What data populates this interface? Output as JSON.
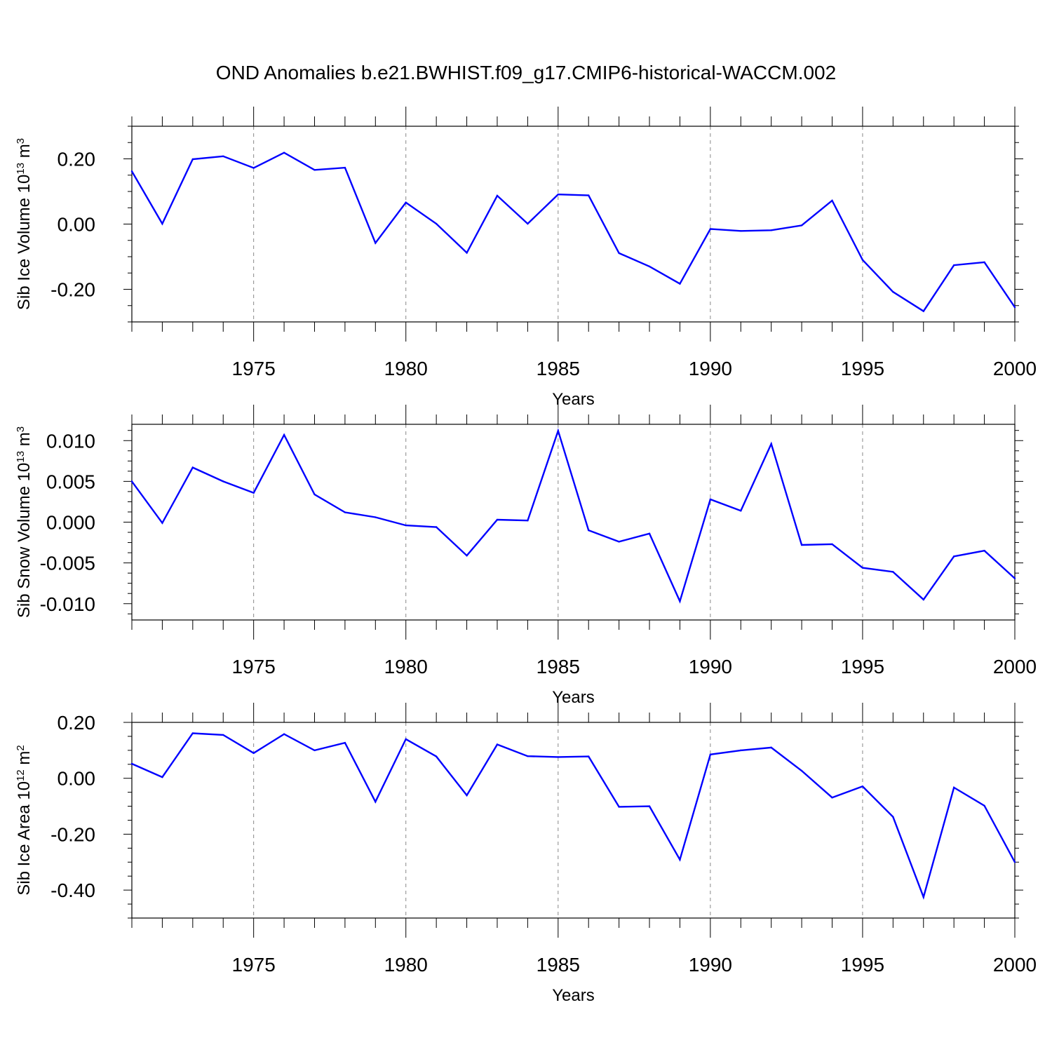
{
  "title": "OND Anomalies b.e21.BWHIST.f09_g17.CMIP6-historical-WACCM.002",
  "line_color": "#0000ff",
  "chart_data": [
    {
      "type": "line",
      "ylabel_main": "Sib Ice Volume 10",
      "ylabel_exp": "13",
      "ylabel_unit": " m",
      "ylabel_unit_exp": "3",
      "xlabel": "Years",
      "xlim": [
        1971,
        2000
      ],
      "ylim": [
        -0.3,
        0.3
      ],
      "yticks": [
        0.2,
        0.0,
        -0.2
      ],
      "ytick_labels": [
        "0.20",
        "0.00",
        "-0.20"
      ],
      "xticks": [
        1975,
        1980,
        1985,
        1990,
        1995,
        2000
      ],
      "xtick_labels": [
        "1975",
        "1980",
        "1985",
        "1990",
        "1995",
        "2000"
      ],
      "x": [
        1971,
        1972,
        1973,
        1974,
        1975,
        1976,
        1977,
        1978,
        1979,
        1980,
        1981,
        1982,
        1983,
        1984,
        1985,
        1986,
        1987,
        1988,
        1989,
        1990,
        1991,
        1992,
        1993,
        1994,
        1995,
        1996,
        1997,
        1998,
        1999,
        2000
      ],
      "y": [
        0.162,
        0.001,
        0.199,
        0.208,
        0.172,
        0.219,
        0.166,
        0.173,
        -0.058,
        0.066,
        0.001,
        -0.088,
        0.087,
        0.001,
        0.091,
        0.088,
        -0.089,
        -0.13,
        -0.183,
        -0.015,
        -0.021,
        -0.019,
        -0.004,
        0.072,
        -0.11,
        -0.208,
        -0.267,
        -0.126,
        -0.117,
        -0.255
      ]
    },
    {
      "type": "line",
      "ylabel_main": "Sib Snow Volume 10",
      "ylabel_exp": "13",
      "ylabel_unit": " m",
      "ylabel_unit_exp": "3",
      "xlabel": "Years",
      "xlim": [
        1971,
        2000
      ],
      "ylim": [
        -0.012,
        0.012
      ],
      "yticks": [
        0.01,
        0.005,
        0.0,
        -0.005,
        -0.01
      ],
      "ytick_labels": [
        "0.010",
        "0.005",
        "0.000",
        "-0.005",
        "-0.010"
      ],
      "xticks": [
        1975,
        1980,
        1985,
        1990,
        1995,
        2000
      ],
      "xtick_labels": [
        "1975",
        "1980",
        "1985",
        "1990",
        "1995",
        "2000"
      ],
      "x": [
        1971,
        1972,
        1973,
        1974,
        1975,
        1976,
        1977,
        1978,
        1979,
        1980,
        1981,
        1982,
        1983,
        1984,
        1985,
        1986,
        1987,
        1988,
        1989,
        1990,
        1991,
        1992,
        1993,
        1994,
        1995,
        1996,
        1997,
        1998,
        1999,
        2000
      ],
      "y": [
        0.005,
        -0.0001,
        0.0067,
        0.005,
        0.0036,
        0.0107,
        0.0034,
        0.0012,
        0.0006,
        -0.0004,
        -0.0006,
        -0.0041,
        0.0003,
        0.0002,
        0.0112,
        -0.001,
        -0.0024,
        -0.0014,
        -0.0097,
        0.0028,
        0.0014,
        0.0096,
        -0.0028,
        -0.0027,
        -0.0056,
        -0.0061,
        -0.0095,
        -0.0042,
        -0.0035,
        -0.0069
      ]
    },
    {
      "type": "line",
      "ylabel_main": "Sib Ice Area 10",
      "ylabel_exp": "12",
      "ylabel_unit": " m",
      "ylabel_unit_exp": "2",
      "xlabel": "Years",
      "xlim": [
        1971,
        2000
      ],
      "ylim": [
        -0.5,
        0.2
      ],
      "yticks": [
        0.2,
        0.0,
        -0.2,
        -0.4
      ],
      "ytick_labels": [
        "0.20",
        "0.00",
        "-0.20",
        "-0.40"
      ],
      "xticks": [
        1975,
        1980,
        1985,
        1990,
        1995,
        2000
      ],
      "xtick_labels": [
        "1975",
        "1980",
        "1985",
        "1990",
        "1995",
        "2000"
      ],
      "x": [
        1971,
        1972,
        1973,
        1974,
        1975,
        1976,
        1977,
        1978,
        1979,
        1980,
        1981,
        1982,
        1983,
        1984,
        1985,
        1986,
        1987,
        1988,
        1989,
        1990,
        1991,
        1992,
        1993,
        1994,
        1995,
        1996,
        1997,
        1998,
        1999,
        2000
      ],
      "y": [
        0.052,
        0.004,
        0.161,
        0.155,
        0.09,
        0.158,
        0.1,
        0.127,
        -0.084,
        0.14,
        0.078,
        -0.061,
        0.121,
        0.079,
        0.076,
        0.078,
        -0.102,
        -0.1,
        -0.291,
        0.085,
        0.1,
        0.11,
        0.027,
        -0.069,
        -0.029,
        -0.138,
        -0.425,
        -0.033,
        -0.098,
        -0.3
      ]
    }
  ]
}
